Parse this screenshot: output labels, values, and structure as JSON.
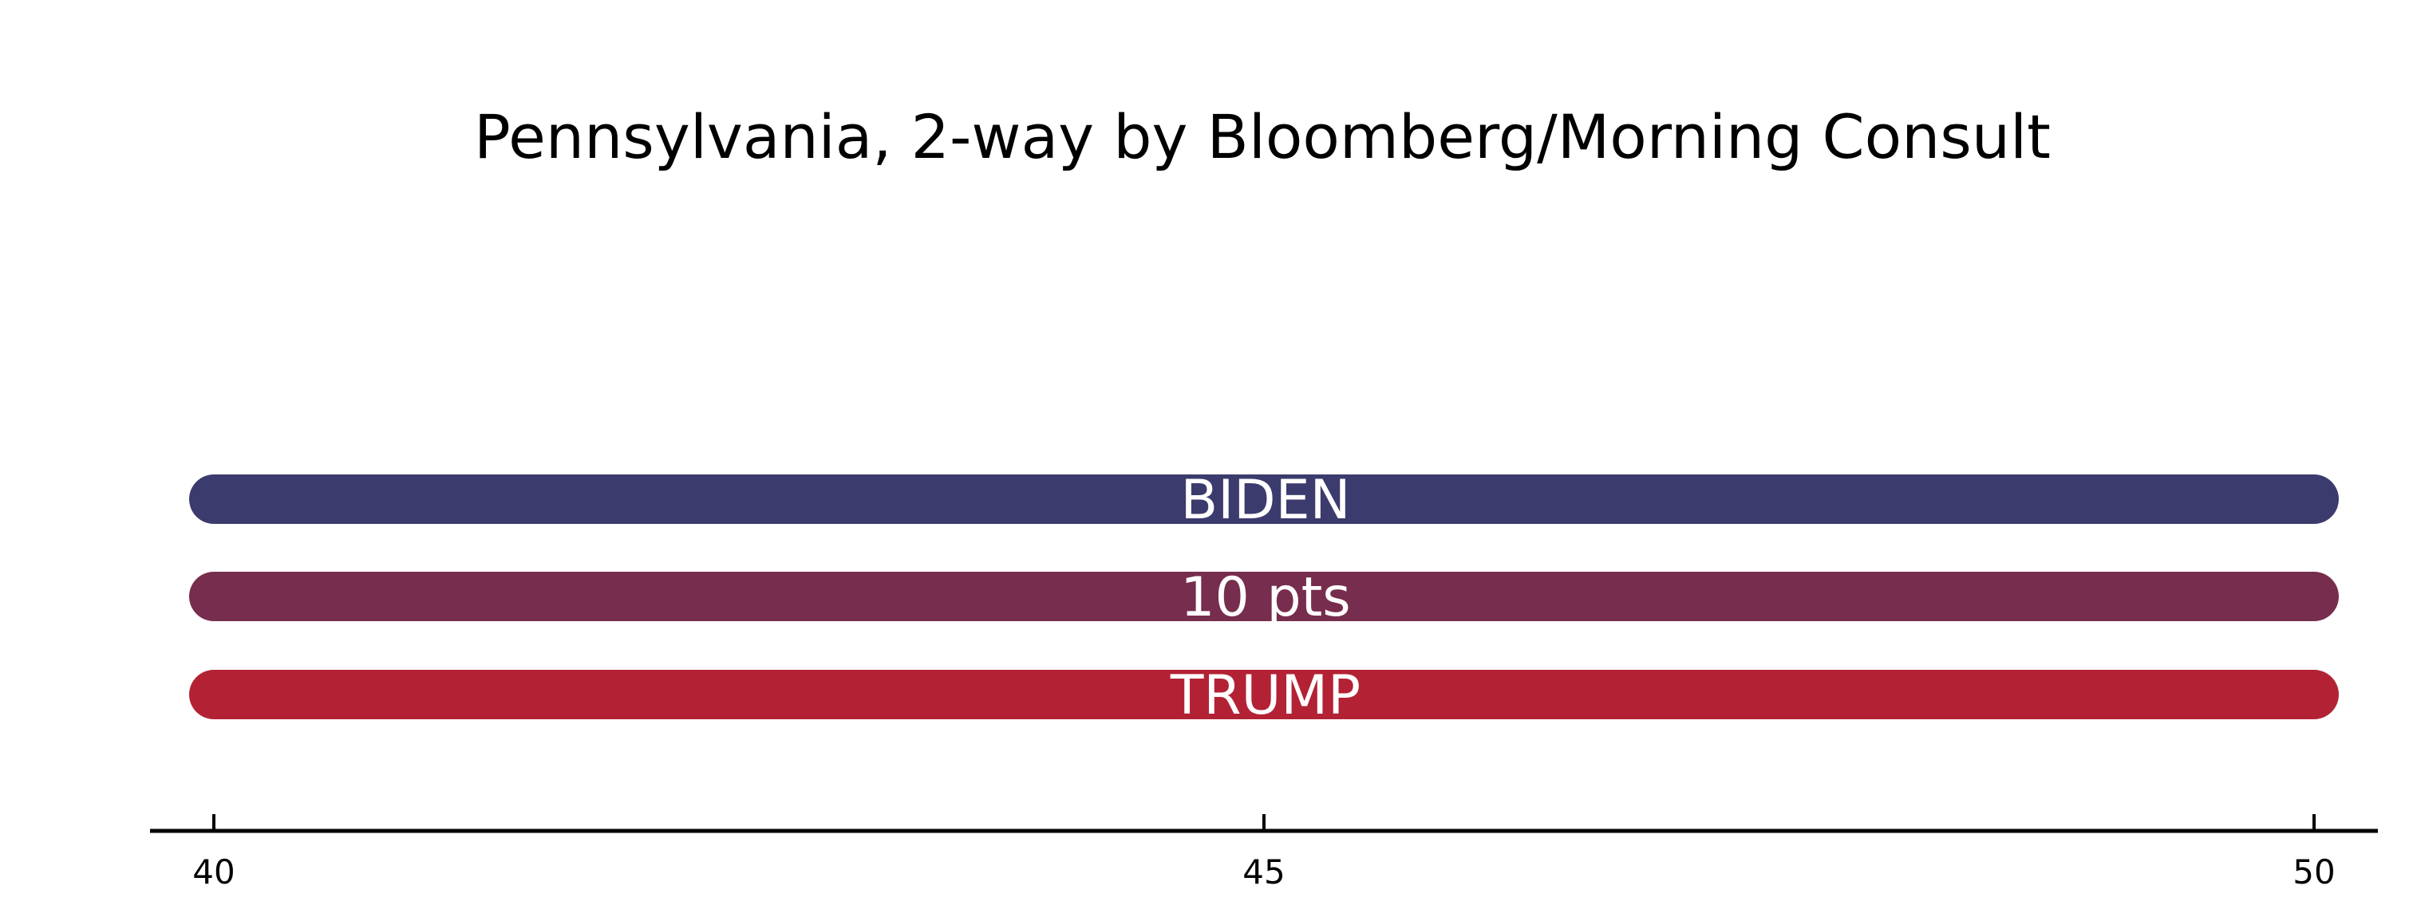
{
  "chart_data": {
    "type": "bar",
    "title": "Pennsylvania, 2-way by Bloomberg/Morning Consult",
    "xlabel": "",
    "ylabel": "",
    "xlim": [
      40,
      50
    ],
    "x_ticks": [
      "40",
      "45",
      "50"
    ],
    "grid": false,
    "legend": "none",
    "bars": [
      {
        "label": "BIDEN",
        "start": 40,
        "end": 50,
        "color": "#3b3b6d"
      },
      {
        "label": "10 pts",
        "start": 40,
        "end": 50,
        "color": "#772d4e"
      },
      {
        "label": "TRUMP",
        "start": 40,
        "end": 50,
        "color": "#b22234"
      }
    ]
  }
}
